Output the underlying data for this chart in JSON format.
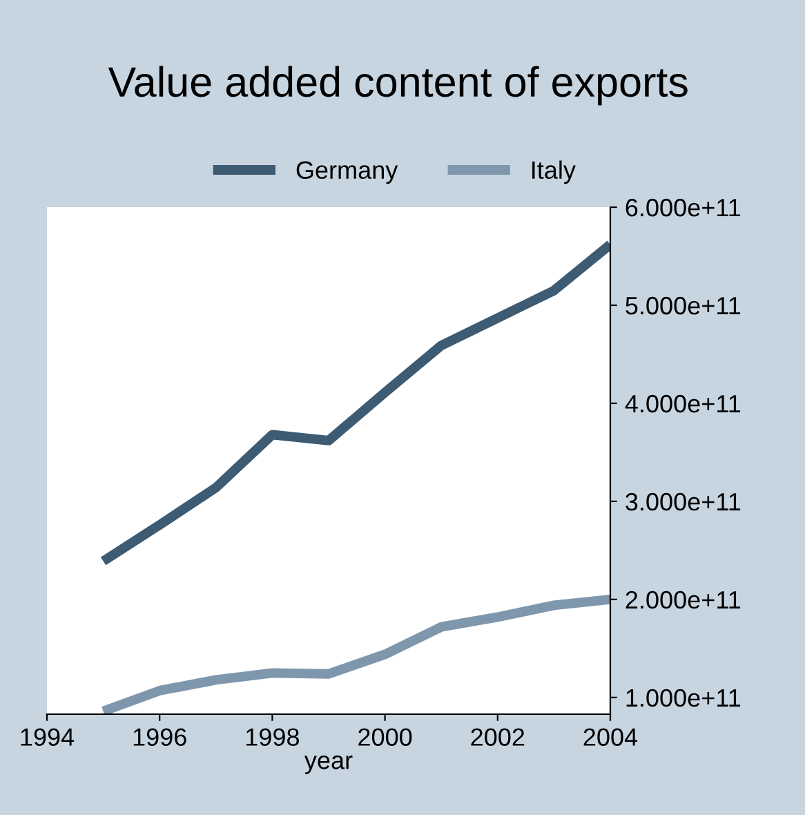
{
  "chart_data": {
    "type": "line",
    "title": "Value added content of exports",
    "xlabel": "year",
    "series": [
      {
        "name": "Germany",
        "color": "#3d5b73",
        "x": [
          1995,
          1996,
          1997,
          1998,
          1999,
          2000,
          2001,
          2002,
          2003,
          2004
        ],
        "values": [
          239000000000.0,
          276000000000.0,
          314000000000.0,
          368000000000.0,
          362000000000.0,
          411000000000.0,
          459000000000.0,
          487000000000.0,
          515000000000.0,
          562000000000.0
        ]
      },
      {
        "name": "Italy",
        "color": "#7f97ad",
        "x": [
          1995,
          1996,
          1997,
          1998,
          1999,
          2000,
          2001,
          2002,
          2003,
          2004
        ],
        "values": [
          86000000000.0,
          107000000000.0,
          118000000000.0,
          125000000000.0,
          124000000000.0,
          144000000000.0,
          172000000000.0,
          182000000000.0,
          194000000000.0,
          200000000000.0
        ]
      }
    ],
    "xlim": [
      1994,
      2004
    ],
    "xticks": [
      1994,
      1996,
      1998,
      2000,
      2002,
      2004
    ],
    "ylim": [
      83000000000.0,
      600000000000.0
    ],
    "yticks": [
      {
        "value": 100000000000.0,
        "label": "1.000e+11"
      },
      {
        "value": 200000000000.0,
        "label": "2.000e+11"
      },
      {
        "value": 300000000000.0,
        "label": "3.000e+11"
      },
      {
        "value": 400000000000.0,
        "label": "4.000e+11"
      },
      {
        "value": 500000000000.0,
        "label": "5.000e+11"
      },
      {
        "value": 600000000000.0,
        "label": "6.000e+11"
      }
    ],
    "grid": false,
    "legend": "top",
    "marker": "none",
    "line_style": "solid"
  }
}
